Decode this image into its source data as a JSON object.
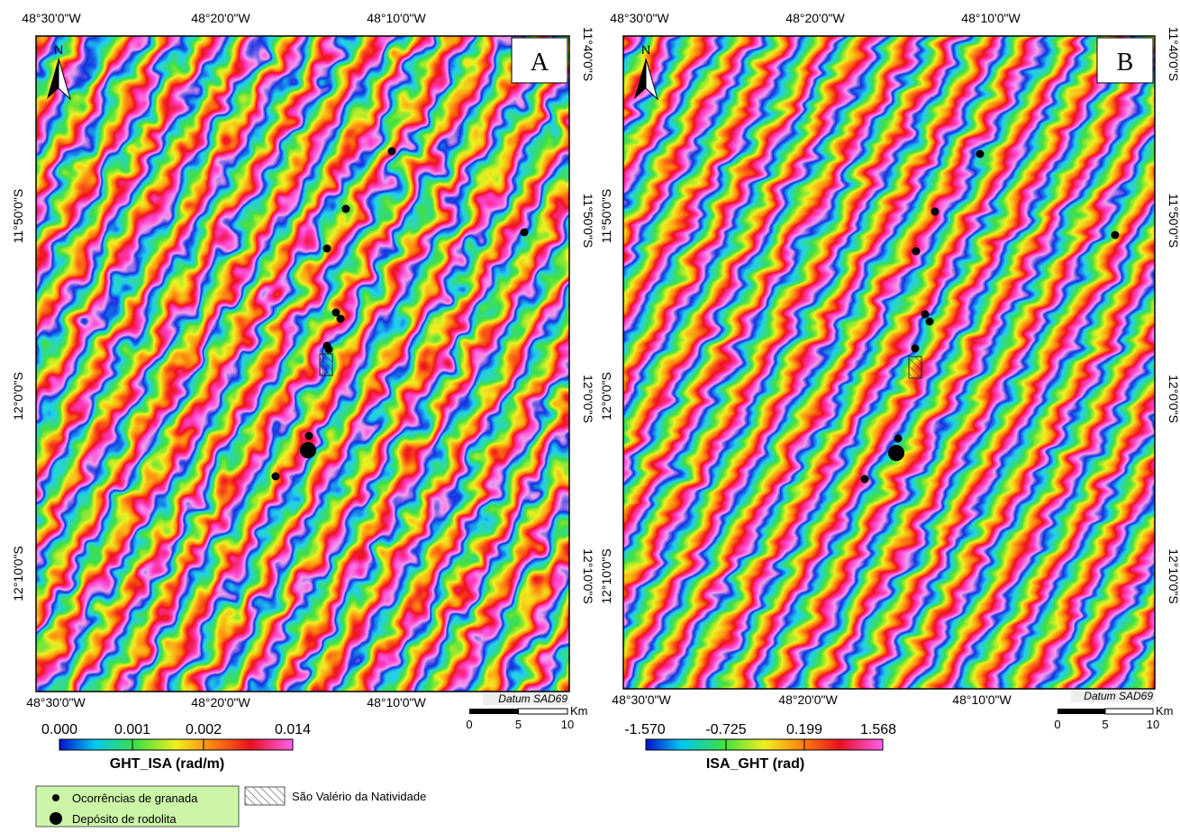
{
  "panels": [
    {
      "label": "A",
      "top_labels": [
        "48°30'0\"W",
        "48°20'0\"W",
        "48°10'0\"W"
      ],
      "bottom_labels": [
        "48°30'0\"W",
        "48°20'0\"W",
        "48°10'0\"W"
      ],
      "left_labels": [
        "11°50'0\"S",
        "12°0'0\"S",
        "12°10'0\"S"
      ],
      "right_labels": [
        "11°40'0\"S",
        "11°50'0\"S",
        "12°0'0\"S",
        "12°10'0\"S"
      ],
      "datum": "Datum SAD69",
      "scale": {
        "unit": "Km",
        "ticks": [
          "0",
          "5",
          "10"
        ]
      },
      "colorbar": {
        "ticks": [
          "0.000",
          "0.001",
          "0.002",
          "0.014"
        ],
        "title": "GHT_ISA (rad/m)"
      }
    },
    {
      "label": "B",
      "top_labels": [
        "48°30'0\"W",
        "48°20'0\"W",
        "48°10'0\"W"
      ],
      "bottom_labels": [
        "48°30'0\"W",
        "48°20'0\"W",
        "48°10'0\"W"
      ],
      "left_labels": [
        "11°50'0\"S",
        "12°0'0\"S",
        "12°10'0\"S"
      ],
      "right_labels": [
        "11°40'0\"S",
        "11°50'0\"S",
        "12°0'0\"S",
        "12°10'0\"S"
      ],
      "datum": "Datum SAD69",
      "scale": {
        "unit": "Km",
        "ticks": [
          "0",
          "5",
          "10"
        ]
      },
      "colorbar": {
        "ticks": [
          "-1.570",
          "-0.725",
          "0.199",
          "1.568"
        ],
        "title": "ISA_GHT (rad)"
      }
    }
  ],
  "legend": {
    "occurrence": "Ocorrências de granada",
    "deposit": "Depósito de rodolita",
    "area": "São Valério da Natividade"
  }
}
